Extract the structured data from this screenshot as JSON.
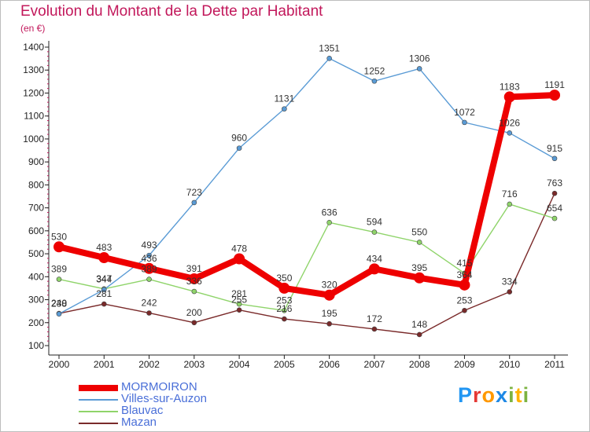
{
  "title": "Evolution du Montant de la Dette par Habitant",
  "subtitle": "(en €)",
  "logo": {
    "letters": [
      "P",
      "r",
      "o",
      "x",
      "i",
      "t",
      "i"
    ],
    "colors": [
      "#2196f3",
      "#e53935",
      "#ff9800",
      "#1e88e5",
      "#7cb342",
      "#ffb300",
      "#7cb342"
    ]
  },
  "chart_data": {
    "type": "line",
    "x": [
      "2000",
      "2001",
      "2002",
      "2003",
      "2004",
      "2005",
      "2006",
      "2007",
      "2008",
      "2009",
      "2010",
      "2011"
    ],
    "ylim": [
      100,
      1400
    ],
    "yticks": [
      100,
      200,
      300,
      400,
      500,
      600,
      700,
      800,
      900,
      1000,
      1100,
      1200,
      1300,
      1400
    ],
    "grid": false,
    "legend": "bottom-left",
    "series": [
      {
        "name": "MORMOIRON",
        "color": "#ee0000",
        "values": [
          530,
          483,
          436,
          391,
          478,
          350,
          320,
          434,
          395,
          364,
          1183,
          1191
        ],
        "labels": [
          "530",
          "483",
          "436",
          "391",
          "478",
          "350",
          "320",
          "434",
          "395",
          "364",
          "1183",
          "1191"
        ]
      },
      {
        "name": "Villes-sur-Auzon",
        "color": "#5a9bd5",
        "values": [
          238,
          344,
          493,
          723,
          960,
          1131,
          1351,
          1252,
          1306,
          1072,
          1026,
          915
        ],
        "labels": [
          "238",
          "344",
          "493",
          "723",
          "960",
          "1131",
          "1351",
          "1252",
          "1306",
          "1072",
          "1026",
          "915"
        ]
      },
      {
        "name": "Blauvac",
        "color": "#8fd46a",
        "values": [
          389,
          347,
          389,
          336,
          281,
          253,
          636,
          594,
          550,
          415,
          716,
          654
        ],
        "labels": [
          "389",
          "347",
          "389",
          "336",
          "281",
          "253",
          "636",
          "594",
          "550",
          "415",
          "716",
          "654"
        ]
      },
      {
        "name": "Mazan",
        "color": "#7a2a2a",
        "values": [
          240,
          281,
          242,
          200,
          255,
          216,
          195,
          172,
          148,
          253,
          334,
          763
        ],
        "labels": [
          "240",
          "281",
          "242",
          "200",
          "255",
          "216",
          "195",
          "172",
          "148",
          "253",
          "334",
          "763"
        ]
      }
    ]
  }
}
